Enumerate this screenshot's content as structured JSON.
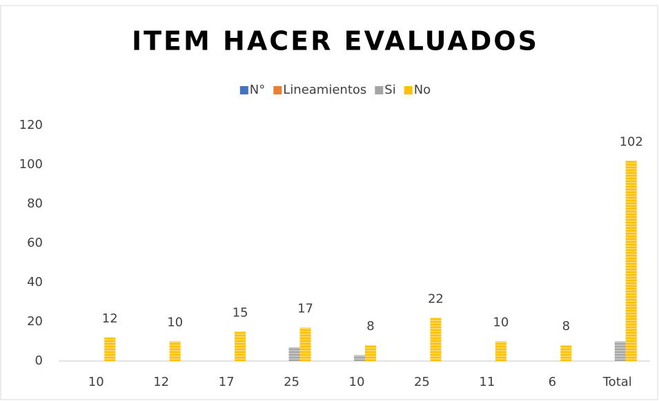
{
  "chart_data": {
    "type": "bar",
    "title": "ITEM HACER EVALUADOS",
    "categories": [
      "10",
      "12",
      "17",
      "25",
      "10",
      "25",
      "11",
      "6",
      "Total"
    ],
    "series": [
      {
        "name": "N°",
        "color": "#4472c4",
        "values": [
          0,
          0,
          0,
          0,
          0,
          0,
          0,
          0,
          0
        ]
      },
      {
        "name": "Lineamientos",
        "color": "#ed7d31",
        "values": [
          0,
          0,
          0,
          0,
          0,
          0,
          0,
          0,
          0
        ]
      },
      {
        "name": "Si",
        "color": "#a5a5a5",
        "values": [
          0,
          0,
          0,
          7,
          3,
          0,
          0,
          0,
          10
        ]
      },
      {
        "name": "No",
        "color": "#ffc000",
        "values": [
          12,
          10,
          15,
          17,
          8,
          22,
          10,
          8,
          102
        ]
      }
    ],
    "data_labels_series": 3,
    "ylim": [
      0,
      120
    ],
    "yticks": [
      0,
      20,
      40,
      60,
      80,
      100,
      120
    ],
    "grid": false,
    "legend": "top"
  }
}
